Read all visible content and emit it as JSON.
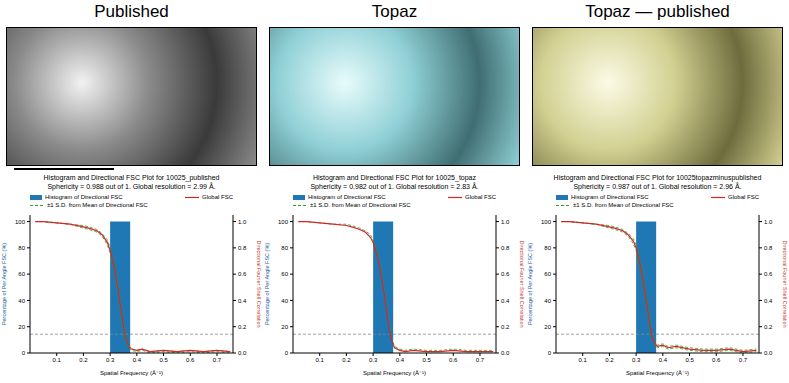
{
  "chart_data": [
    {
      "type": "histogram",
      "panel_title": "Published",
      "title": "Histogram and Directional FSC Plot for 10025_published",
      "subtitle": "Sphericity = 0.988 out of 1. Global resolution = 2.99 Å.",
      "x_label": "Spatial Frequency (Å⁻¹)",
      "y_label": "Percentage of Per Angle FSC (%)",
      "y2_label": "Directional Fourier Shell Correlation",
      "legend": "top",
      "threshold": 0.143,
      "x": [
        0.02,
        0.05,
        0.1,
        0.15,
        0.2,
        0.22,
        0.25,
        0.27,
        0.29,
        0.3,
        0.31,
        0.32,
        0.33,
        0.34,
        0.35,
        0.36,
        0.37,
        0.38,
        0.4,
        0.42,
        0.45,
        0.5,
        0.55,
        0.6,
        0.65,
        0.7,
        0.75
      ],
      "xlim": [
        0,
        0.76
      ],
      "xticks": [
        0.1,
        0.2,
        0.3,
        0.4,
        0.5,
        0.6,
        0.7
      ],
      "ylim": [
        0,
        105
      ],
      "yticks": [
        0,
        20,
        40,
        60,
        80,
        100
      ],
      "y2lim": [
        0,
        1.05
      ],
      "y2ticks": [
        {
          "value": 0,
          "label": "0.0"
        },
        0.2,
        0.4,
        0.6,
        0.8,
        {
          "value": 1,
          "label": "1.0"
        }
      ],
      "series": [
        {
          "name": "Histogram of Directional FSC",
          "type": "histogram",
          "color": "#1f77b4",
          "bins": [
            0.3,
            0.375
          ],
          "counts": [
            100
          ]
        },
        {
          "name": "±1 S.D. from Mean of Directional FSC",
          "type": "line",
          "color": "#2ca02c",
          "line_style": "dashed",
          "axis": "y2",
          "upper": [
            1.0,
            1.0,
            0.99,
            0.98,
            0.97,
            0.96,
            0.94,
            0.91,
            0.86,
            0.8,
            0.73,
            0.63,
            0.51,
            0.37,
            0.23,
            0.12,
            0.06,
            0.03,
            0.02,
            0.03,
            0.01,
            0.02,
            0.01,
            0.02,
            0.01,
            0.02,
            0.01
          ],
          "lower": [
            1.0,
            1.0,
            0.99,
            0.98,
            0.95,
            0.94,
            0.92,
            0.89,
            0.82,
            0.76,
            0.67,
            0.57,
            0.45,
            0.31,
            0.17,
            0.08,
            0.04,
            0.02,
            0.01,
            0.02,
            0.0,
            0.01,
            0.0,
            0.01,
            0.0,
            0.01,
            0.0
          ]
        },
        {
          "name": "Global FSC",
          "type": "line",
          "color": "#d62728",
          "line_style": "solid",
          "axis": "y2",
          "values": [
            1.0,
            1.0,
            0.99,
            0.98,
            0.96,
            0.95,
            0.93,
            0.9,
            0.84,
            0.78,
            0.7,
            0.6,
            0.48,
            0.34,
            0.2,
            0.1,
            0.05,
            0.03,
            0.02,
            0.03,
            0.01,
            0.02,
            0.01,
            0.02,
            0.01,
            0.02,
            0.01
          ]
        }
      ]
    },
    {
      "type": "histogram",
      "panel_title": "Topaz",
      "title": "Histogram and Directional FSC Plot for 10025_topaz",
      "subtitle": "Sphericity = 0.982 out of 1. Global resolution = 2.83 Å.",
      "x_label": "Spatial Frequency (Å⁻¹)",
      "y_label": "Percentage of Per Angle FSC (%)",
      "y2_label": "Directional Fourier Shell Correlation",
      "legend": "top",
      "threshold": 0.143,
      "x": [
        0.02,
        0.05,
        0.1,
        0.15,
        0.2,
        0.22,
        0.25,
        0.27,
        0.29,
        0.3,
        0.31,
        0.32,
        0.33,
        0.34,
        0.35,
        0.36,
        0.37,
        0.38,
        0.4,
        0.42,
        0.45,
        0.5,
        0.55,
        0.6,
        0.65,
        0.7,
        0.75
      ],
      "xlim": [
        0,
        0.76
      ],
      "xticks": [
        0.1,
        0.2,
        0.3,
        0.4,
        0.5,
        0.6,
        0.7
      ],
      "ylim": [
        0,
        105
      ],
      "yticks": [
        0,
        20,
        40,
        60,
        80,
        100
      ],
      "y2lim": [
        0,
        1.05
      ],
      "y2ticks": [
        {
          "value": 0,
          "label": "0.0"
        },
        0.2,
        0.4,
        0.6,
        0.8,
        {
          "value": 1,
          "label": "1.0"
        }
      ],
      "series": [
        {
          "name": "Histogram of Directional FSC",
          "type": "histogram",
          "color": "#1f77b4",
          "bins": [
            0.3,
            0.375
          ],
          "counts": [
            100
          ]
        },
        {
          "name": "±1 S.D. from Mean of Directional FSC",
          "type": "line",
          "color": "#2ca02c",
          "line_style": "dashed",
          "axis": "y2",
          "upper": [
            1.0,
            1.0,
            0.99,
            0.98,
            0.98,
            0.97,
            0.95,
            0.93,
            0.9,
            0.86,
            0.81,
            0.73,
            0.63,
            0.5,
            0.35,
            0.21,
            0.11,
            0.05,
            0.03,
            0.02,
            0.03,
            0.02,
            0.02,
            0.03,
            0.02,
            0.02,
            0.02
          ]
        },
        {
          "name": "Global FSC",
          "type": "line",
          "color": "#d62728",
          "line_style": "solid",
          "axis": "y2",
          "values": [
            1.0,
            1.0,
            0.99,
            0.98,
            0.97,
            0.96,
            0.94,
            0.92,
            0.88,
            0.84,
            0.78,
            0.7,
            0.6,
            0.47,
            0.32,
            0.18,
            0.09,
            0.04,
            0.02,
            0.01,
            0.02,
            0.01,
            0.01,
            0.02,
            0.01,
            0.01,
            0.01
          ]
        }
      ]
    },
    {
      "type": "histogram",
      "panel_title": "Topaz — published",
      "title": "Histogram and Directional FSC Plot for 10025topazminuspublished",
      "subtitle": "Sphericity = 0.987 out of 1. Global resolution = 2.96 Å.",
      "x_label": "Spatial Frequency (Å⁻¹)",
      "y_label": "Percentage of Per Angle FSC (%)",
      "y2_label": "Directional Fourier Shell Correlation",
      "legend": "top",
      "threshold": 0.143,
      "x": [
        0.02,
        0.05,
        0.1,
        0.15,
        0.2,
        0.22,
        0.25,
        0.27,
        0.29,
        0.3,
        0.31,
        0.32,
        0.33,
        0.34,
        0.35,
        0.36,
        0.37,
        0.38,
        0.4,
        0.42,
        0.45,
        0.5,
        0.55,
        0.6,
        0.65,
        0.7,
        0.75
      ],
      "xlim": [
        0,
        0.76
      ],
      "xticks": [
        0.1,
        0.2,
        0.3,
        0.4,
        0.5,
        0.6,
        0.7
      ],
      "ylim": [
        0,
        105
      ],
      "yticks": [
        0,
        20,
        40,
        60,
        80,
        100
      ],
      "y2lim": [
        0,
        1.05
      ],
      "y2ticks": [
        {
          "value": 0,
          "label": "0.0"
        },
        0.2,
        0.4,
        0.6,
        0.8,
        {
          "value": 1,
          "label": "1.0"
        }
      ],
      "series": [
        {
          "name": "Histogram of Directional FSC",
          "type": "histogram",
          "color": "#1f77b4",
          "bins": [
            0.3,
            0.375
          ],
          "counts": [
            100
          ]
        },
        {
          "name": "±1 S.D. from Mean of Directional FSC",
          "type": "line",
          "color": "#2ca02c",
          "line_style": "dashed",
          "axis": "y2",
          "upper": [
            1.0,
            1.0,
            0.99,
            0.98,
            0.97,
            0.96,
            0.94,
            0.91,
            0.87,
            0.82,
            0.75,
            0.65,
            0.53,
            0.4,
            0.26,
            0.14,
            0.08,
            0.06,
            0.07,
            0.05,
            0.06,
            0.04,
            0.03,
            0.03,
            0.04,
            0.02,
            0.03
          ],
          "lower": [
            1.0,
            1.0,
            0.99,
            0.98,
            0.95,
            0.94,
            0.92,
            0.89,
            0.83,
            0.78,
            0.69,
            0.59,
            0.47,
            0.34,
            0.2,
            0.1,
            0.06,
            0.04,
            0.05,
            0.03,
            0.04,
            0.02,
            0.01,
            0.01,
            0.02,
            0.0,
            0.01
          ]
        },
        {
          "name": "Global FSC",
          "type": "line",
          "color": "#d62728",
          "line_style": "solid",
          "axis": "y2",
          "values": [
            1.0,
            1.0,
            0.99,
            0.98,
            0.96,
            0.95,
            0.93,
            0.9,
            0.85,
            0.8,
            0.72,
            0.62,
            0.5,
            0.37,
            0.23,
            0.12,
            0.07,
            0.05,
            0.06,
            0.04,
            0.05,
            0.03,
            0.02,
            0.02,
            0.03,
            0.01,
            0.02
          ]
        }
      ]
    }
  ]
}
